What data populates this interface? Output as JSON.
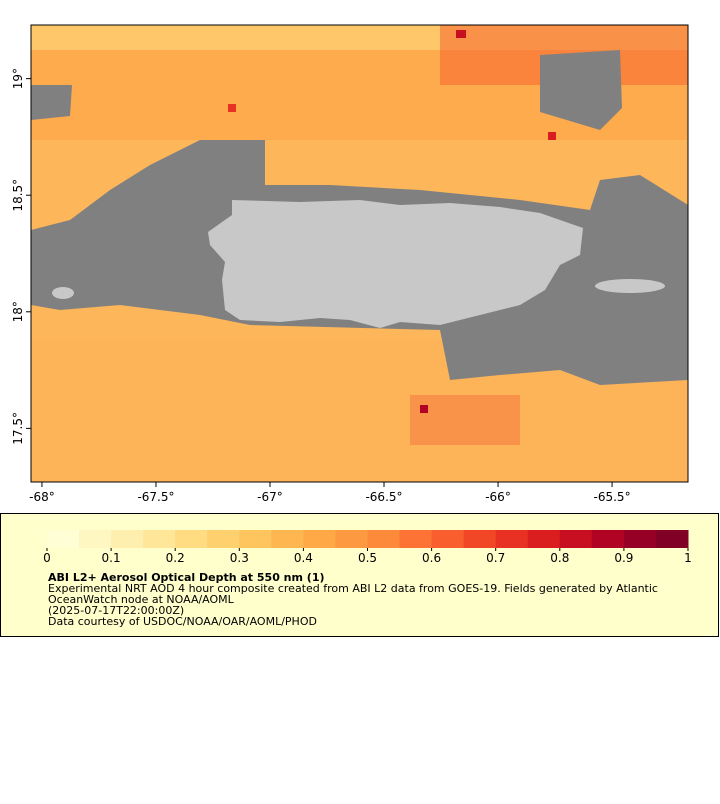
{
  "chart_data": {
    "type": "map",
    "xlim": [
      -68.048,
      -65.167
    ],
    "ylim": [
      17.27,
      19.23
    ],
    "xticks": [
      {
        "value": -68,
        "label": "-68°"
      },
      {
        "value": -67.5,
        "label": "-67.5°"
      },
      {
        "value": -67,
        "label": "-67°"
      },
      {
        "value": -66.5,
        "label": "-66.5°"
      },
      {
        "value": -66,
        "label": "-66°"
      },
      {
        "value": -65.5,
        "label": "-65.5°"
      }
    ],
    "yticks": [
      {
        "value": 17.5,
        "label": "17.5°"
      },
      {
        "value": 18,
        "label": "18°"
      },
      {
        "value": 18.5,
        "label": "18.5°"
      },
      {
        "value": 19,
        "label": "19°"
      }
    ],
    "colorbar": {
      "lim": [
        0,
        1
      ],
      "ticks": [
        0,
        0.1,
        0.2,
        0.3,
        0.4,
        0.5,
        0.6,
        0.7,
        0.8,
        0.9,
        1
      ],
      "colors": [
        "#fffed4",
        "#fff7c2",
        "#ffefae",
        "#ffe698",
        "#ffdb82",
        "#fed06e",
        "#fec45e",
        "#feb650",
        "#fea846",
        "#fd9940",
        "#fd893b",
        "#fc7335",
        "#f95e2e",
        "#f24727",
        "#e83122",
        "#da1d1f",
        "#c80e21",
        "#b10424",
        "#970026",
        "#800026"
      ]
    },
    "title": "ABI L2+ Aerosol Optical Depth at 550 nm (1)",
    "description": [
      "Experimental NRT AOD 4 hour composite created from ABI L2 data from GOES-19. Fields generated by Atlantic",
      "OceanWatch node at NOAA/AOML",
      "(2025-07-17T22:00:00Z)",
      "Data courtesy of USDOC/NOAA/OAR/AOML/PHOD"
    ]
  }
}
